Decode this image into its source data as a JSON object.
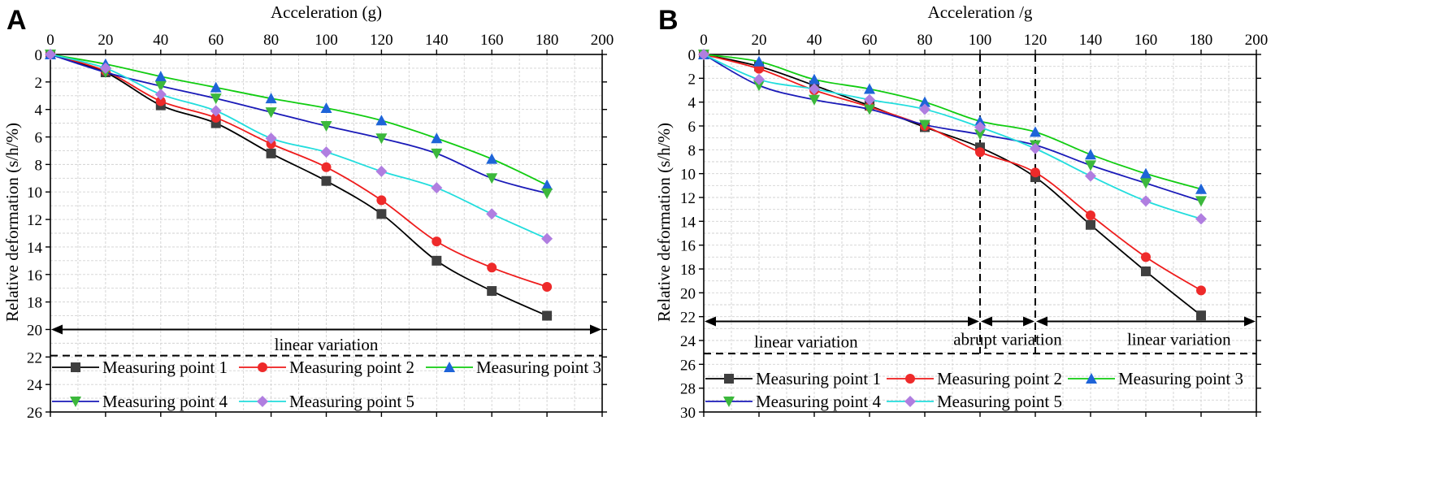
{
  "chart_data": [
    {
      "panel": "A",
      "type": "line",
      "xlabel": "Acceleration (g)",
      "ylabel": "Relative deformation (s/h/%)",
      "xlim": [
        0,
        200
      ],
      "ylim": [
        0,
        26
      ],
      "x_ticks": [
        0,
        20,
        40,
        60,
        80,
        100,
        120,
        140,
        160,
        180,
        200
      ],
      "y_ticks": [
        0,
        2,
        4,
        6,
        8,
        10,
        12,
        14,
        16,
        18,
        20,
        22,
        24,
        26
      ],
      "grid": true,
      "x": [
        0,
        20,
        40,
        60,
        80,
        100,
        120,
        140,
        160,
        180
      ],
      "series": [
        {
          "name": "Measuring point 1",
          "color": "#000000",
          "marker_color": "#3f3f3f",
          "marker": "square",
          "values": [
            0,
            1.3,
            3.7,
            5.0,
            7.2,
            9.2,
            11.6,
            15.0,
            17.2,
            19.0
          ]
        },
        {
          "name": "Measuring point 2",
          "color": "#ee1c1c",
          "marker_color": "#ee2a2a",
          "marker": "circle",
          "values": [
            0,
            1.2,
            3.4,
            4.6,
            6.5,
            8.2,
            10.6,
            13.6,
            15.5,
            16.9
          ]
        },
        {
          "name": "Measuring point 3",
          "color": "#11cc11",
          "marker_color": "#1e64d8",
          "marker": "triangle-up",
          "values": [
            0,
            0.7,
            1.6,
            2.4,
            3.2,
            3.9,
            4.8,
            6.1,
            7.6,
            9.5
          ]
        },
        {
          "name": "Measuring point 4",
          "color": "#1a1ab8",
          "marker_color": "#3cb83c",
          "marker": "triangle-down",
          "values": [
            0,
            1.3,
            2.3,
            3.2,
            4.2,
            5.2,
            6.1,
            7.2,
            9.0,
            10.1
          ]
        },
        {
          "name": "Measuring point 5",
          "color": "#22dddd",
          "marker_color": "#b07ee0",
          "marker": "diamond",
          "values": [
            0,
            1.0,
            2.9,
            4.1,
            6.1,
            7.1,
            8.5,
            9.7,
            11.6,
            13.4
          ]
        }
      ],
      "annotations": {
        "arrows": [
          {
            "from": 0,
            "to": 200,
            "y": 20
          }
        ],
        "dashed_hline": 21.9,
        "vlines": [],
        "texts": [
          {
            "text": "linear variation",
            "x": 100,
            "y": 21.1
          }
        ]
      }
    },
    {
      "panel": "B",
      "type": "line",
      "xlabel": "Acceleration /g",
      "ylabel": "Relative deformation (s/h/%)",
      "xlim": [
        0,
        200
      ],
      "ylim": [
        0,
        30
      ],
      "x_ticks": [
        0,
        20,
        40,
        60,
        80,
        100,
        120,
        140,
        160,
        180,
        200
      ],
      "y_ticks": [
        0,
        2,
        4,
        6,
        8,
        10,
        12,
        14,
        16,
        18,
        20,
        22,
        24,
        26,
        28,
        30
      ],
      "grid": true,
      "x": [
        0,
        20,
        40,
        60,
        80,
        100,
        120,
        140,
        160,
        180
      ],
      "series": [
        {
          "name": "Measuring point 1",
          "color": "#000000",
          "marker_color": "#3f3f3f",
          "marker": "square",
          "values": [
            0,
            1.0,
            2.6,
            4.3,
            6.1,
            7.8,
            10.3,
            14.3,
            18.2,
            21.9
          ]
        },
        {
          "name": "Measuring point 2",
          "color": "#ee1c1c",
          "marker_color": "#ee2a2a",
          "marker": "circle",
          "values": [
            0,
            1.2,
            3.0,
            4.4,
            6.0,
            8.2,
            9.9,
            13.5,
            17.0,
            19.8
          ]
        },
        {
          "name": "Measuring point 3",
          "color": "#11cc11",
          "marker_color": "#1e64d8",
          "marker": "triangle-up",
          "values": [
            0,
            0.6,
            2.1,
            2.9,
            4.0,
            5.6,
            6.5,
            8.4,
            10.0,
            11.3
          ]
        },
        {
          "name": "Measuring point 4",
          "color": "#1a1ab8",
          "marker_color": "#3cb83c",
          "marker": "triangle-down",
          "values": [
            0,
            2.6,
            3.8,
            4.6,
            5.9,
            6.7,
            7.6,
            9.3,
            10.8,
            12.3
          ]
        },
        {
          "name": "Measuring point 5",
          "color": "#22dddd",
          "marker_color": "#b07ee0",
          "marker": "diamond",
          "values": [
            0,
            2.1,
            2.9,
            3.8,
            4.6,
            6.1,
            7.9,
            10.2,
            12.3,
            13.8
          ]
        }
      ],
      "annotations": {
        "arrows": [
          {
            "from": 0,
            "to": 100,
            "y": 22.4
          },
          {
            "from": 100,
            "to": 120,
            "y": 22.4
          },
          {
            "from": 120,
            "to": 200,
            "y": 22.4
          }
        ],
        "dashed_hline": 25.1,
        "vlines": [
          100,
          120
        ],
        "texts": [
          {
            "text": "linear variation",
            "x": 37,
            "y": 24.1
          },
          {
            "text": "abrupt variation",
            "x": 110,
            "y": 23.9
          },
          {
            "text": "linear variation",
            "x": 172,
            "y": 23.9
          }
        ]
      }
    }
  ]
}
